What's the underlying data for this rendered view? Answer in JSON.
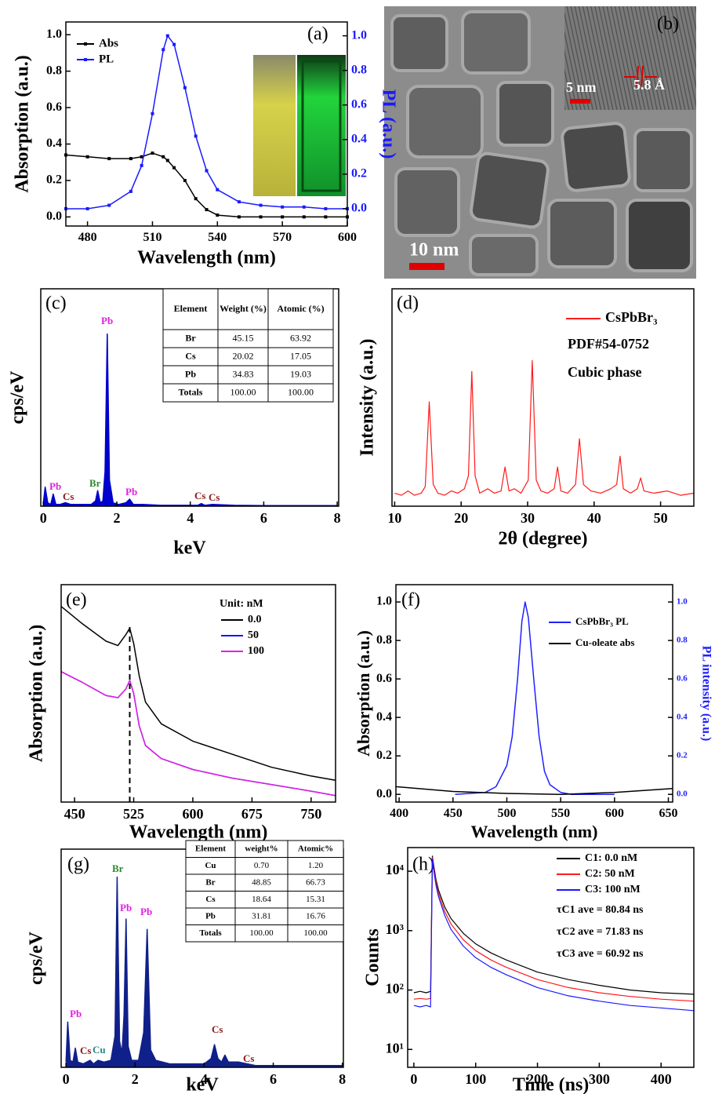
{
  "chart_data": [
    {
      "type": "line",
      "label": "(a)",
      "xlabel": "Wavelength (nm)",
      "ylabel": "Absorption (a.u.)",
      "y2label": "PL (a.u.)",
      "y2color": "#1a1aff",
      "x": [
        470,
        480,
        490,
        500,
        505,
        510,
        515,
        517,
        520,
        525,
        530,
        535,
        540,
        550,
        560,
        570,
        580,
        590,
        600
      ],
      "series": [
        {
          "name": "Abs",
          "color": "#000000",
          "values": [
            0.34,
            0.33,
            0.32,
            0.32,
            0.33,
            0.35,
            0.33,
            0.31,
            0.27,
            0.2,
            0.1,
            0.04,
            0.01,
            0.0,
            0.0,
            0.0,
            0.0,
            0.0,
            0.0
          ]
        },
        {
          "name": "PL",
          "color": "#1a1aff",
          "axis": "y2",
          "values": [
            0.0,
            0.0,
            0.02,
            0.1,
            0.25,
            0.55,
            0.92,
            1.0,
            0.95,
            0.7,
            0.42,
            0.22,
            0.11,
            0.04,
            0.02,
            0.01,
            0.01,
            0.0,
            0.0
          ]
        }
      ],
      "xlim": [
        470,
        600
      ],
      "xticks": [
        480,
        510,
        540,
        570,
        600
      ],
      "ylim": [
        -0.05,
        1.07
      ],
      "yticks": [
        {
          "value": 0,
          "label": "0.0"
        },
        0.2,
        0.4,
        0.6,
        0.8,
        {
          "value": 1,
          "label": "1.0"
        }
      ],
      "y2lim": [
        -0.1,
        1.08
      ],
      "y2ticks": [
        {
          "value": 0,
          "label": "0.0"
        },
        0.2,
        0.4,
        0.6,
        0.8,
        {
          "value": 1,
          "label": "1.0"
        }
      ],
      "markers": true,
      "legend": "upper left"
    },
    {
      "type": "image",
      "label": "(b)",
      "annotations": [
        "5 nm",
        "5.8 Å",
        "10 nm"
      ]
    },
    {
      "type": "area",
      "label": "(c)",
      "xlabel": "keV",
      "ylabel": "cps/eV",
      "color": "#0000cc",
      "x": [
        0,
        0.05,
        0.12,
        0.2,
        0.27,
        0.34,
        0.45,
        0.6,
        0.75,
        0.9,
        1.1,
        1.3,
        1.42,
        1.48,
        1.55,
        1.62,
        1.68,
        1.74,
        1.8,
        1.9,
        2.05,
        2.25,
        2.35,
        2.45,
        2.7,
        3.2,
        3.8,
        4.2,
        4.3,
        4.4,
        4.6,
        5.2,
        6,
        7,
        8
      ],
      "values": [
        2,
        11,
        2,
        1,
        7,
        1,
        1,
        2,
        1,
        1,
        1,
        1,
        3,
        9,
        2,
        3,
        20,
        99,
        15,
        2,
        1,
        2,
        4,
        1,
        1,
        0.5,
        0.5,
        0.5,
        1.5,
        0.5,
        1,
        0.5,
        0.3,
        0.3,
        0.3
      ],
      "xlim": [
        -0.07,
        8.04
      ],
      "xticks": [
        0,
        2,
        4,
        6,
        8
      ],
      "ylim": [
        0,
        125
      ],
      "peak_labels": [
        {
          "text": "Pb",
          "color": "#e020e0"
        },
        {
          "text": "Cs",
          "color": "#8b1a1a"
        },
        {
          "text": "Br",
          "color": "#2a8a2a"
        },
        {
          "text": "Pb",
          "color": "#e020e0"
        },
        {
          "text": "Pb",
          "color": "#e020e0"
        },
        {
          "text": "Cs",
          "color": "#8b1a1a"
        },
        {
          "text": "Cs",
          "color": "#8b1a1a"
        }
      ],
      "table": {
        "header": [
          "Element",
          "Weight (%)",
          "Atomic (%)"
        ],
        "rows": [
          [
            "Br",
            "45.15",
            "63.92"
          ],
          [
            "Cs",
            "20.02",
            "17.05"
          ],
          [
            "Pb",
            "34.83",
            "19.03"
          ],
          [
            "Totals",
            "100.00",
            "100.00"
          ]
        ]
      }
    },
    {
      "type": "line",
      "label": "(d)",
      "xlabel": "2θ (degree)",
      "ylabel": "Intensity (a.u.)",
      "x": [
        10,
        11,
        12,
        13,
        14,
        14.6,
        15.2,
        15.8,
        16.5,
        17.5,
        18.5,
        19.5,
        20.5,
        21.1,
        21.6,
        22.1,
        22.8,
        24,
        25,
        26,
        26.6,
        27.2,
        28,
        29,
        30.1,
        30.7,
        31.3,
        32,
        33,
        34,
        34.5,
        35,
        36,
        37.2,
        37.8,
        38.4,
        39.5,
        41,
        42.5,
        43.4,
        43.9,
        44.4,
        45.5,
        46.5,
        47,
        47.5,
        49,
        51,
        53,
        55
      ],
      "series": [
        {
          "name": "CsPbBr₃",
          "color": "#ff1a1a",
          "values": [
            6,
            5,
            7,
            5,
            6,
            9,
            48,
            10,
            6,
            5,
            7,
            6,
            8,
            14,
            62,
            14,
            6,
            8,
            6,
            7,
            18,
            7,
            8,
            6,
            12,
            67,
            12,
            7,
            6,
            8,
            18,
            7,
            6,
            10,
            31,
            10,
            7,
            6,
            8,
            10,
            23,
            8,
            6,
            8,
            13,
            7,
            6,
            7,
            5,
            6
          ]
        }
      ],
      "xlim": [
        9.6,
        55
      ],
      "xticks": [
        10,
        20,
        30,
        40,
        50
      ],
      "ylim": [
        0,
        100
      ],
      "annotations": [
        "PDF#54-0752",
        "Cubic phase"
      ],
      "legend": "upper right"
    },
    {
      "type": "line",
      "label": "(e)",
      "xlabel": "Wavelength (nm)",
      "ylabel": "Absorption (a.u.)",
      "legend_title": "Unit: nM",
      "x": [
        433,
        460,
        490,
        505,
        515,
        520,
        525,
        532,
        540,
        560,
        600,
        650,
        700,
        750,
        781
      ],
      "series": [
        {
          "name": "0.0",
          "color": "#000000",
          "values": [
            0.9,
            0.82,
            0.74,
            0.72,
            0.77,
            0.8,
            0.73,
            0.58,
            0.46,
            0.36,
            0.28,
            0.22,
            0.16,
            0.12,
            0.1
          ]
        },
        {
          "name": "50",
          "color": "#1414ff",
          "values": [
            0.6,
            0.55,
            0.49,
            0.48,
            0.52,
            0.56,
            0.5,
            0.35,
            0.26,
            0.2,
            0.15,
            0.11,
            0.08,
            0.05,
            0.03
          ]
        },
        {
          "name": "100",
          "color": "#e020e0",
          "values": [
            0.6,
            0.55,
            0.49,
            0.48,
            0.52,
            0.56,
            0.5,
            0.35,
            0.26,
            0.2,
            0.15,
            0.11,
            0.08,
            0.05,
            0.03
          ]
        }
      ],
      "xlim": [
        433,
        781
      ],
      "xticks": [
        450,
        525,
        600,
        675,
        750
      ],
      "ylim": [
        0,
        1
      ],
      "vline": 520,
      "legend": "upper right"
    },
    {
      "type": "line",
      "label": "(f)",
      "xlabel": "Wavelength (nm)",
      "ylabel": "Absorption (a.u.)",
      "y2label": "PL intensity (a.u.)",
      "y2color": "#2020ff",
      "series": [
        {
          "name": "CsPbBr₃ PL",
          "color": "#2020ff",
          "axis": "y2",
          "x": [
            452,
            480,
            490,
            500,
            505,
            510,
            514,
            517,
            520,
            525,
            530,
            535,
            540,
            550,
            560,
            600
          ],
          "values": [
            0,
            0.01,
            0.04,
            0.15,
            0.3,
            0.6,
            0.9,
            1.0,
            0.92,
            0.6,
            0.3,
            0.12,
            0.05,
            0.01,
            0.0,
            0.0
          ]
        },
        {
          "name": "Cu-oleate abs",
          "color": "#000000",
          "x": [
            397,
            450,
            500,
            550,
            600,
            654
          ],
          "values": [
            0.04,
            0.015,
            0.005,
            0.0,
            0.01,
            0.03
          ]
        }
      ],
      "xlim": [
        397,
        654
      ],
      "xticks": [
        400,
        450,
        500,
        550,
        600,
        650
      ],
      "ylim": [
        -0.04,
        1.09
      ],
      "yticks": [
        {
          "value": 0,
          "label": "0.0"
        },
        0.2,
        0.4,
        0.6,
        0.8,
        {
          "value": 1,
          "label": "1.0"
        }
      ],
      "y2lim": [
        -0.04,
        1.09
      ],
      "y2ticks": [
        {
          "value": 0,
          "label": "0.0"
        },
        0.2,
        0.4,
        0.6,
        0.8,
        {
          "value": 1,
          "label": "1.0"
        }
      ],
      "legend": "upper right"
    },
    {
      "type": "area",
      "label": "(g)",
      "xlabel": "keV",
      "ylabel": "cps/eV",
      "color": "#10208a",
      "x": [
        0,
        0.05,
        0.12,
        0.2,
        0.27,
        0.34,
        0.5,
        0.7,
        0.8,
        0.93,
        1.1,
        1.3,
        1.42,
        1.48,
        1.55,
        1.62,
        1.68,
        1.74,
        1.8,
        1.9,
        2.1,
        2.25,
        2.35,
        2.45,
        2.6,
        3.0,
        3.6,
        4.0,
        4.2,
        4.3,
        4.4,
        4.5,
        4.6,
        4.7,
        5.0,
        5.5,
        6.5,
        7.5,
        8
      ],
      "values": [
        3,
        26,
        4,
        3,
        11,
        3,
        2,
        4,
        2,
        4,
        3,
        4,
        18,
        109,
        15,
        8,
        30,
        85,
        12,
        4,
        4,
        20,
        79,
        10,
        4,
        2,
        2,
        2,
        5,
        13,
        5,
        3,
        7,
        3,
        3,
        1,
        1,
        1,
        1
      ],
      "xlim": [
        -0.14,
        8.03
      ],
      "xticks": [
        0,
        2,
        4,
        6,
        8
      ],
      "ylim": [
        0,
        125
      ],
      "peak_labels": [
        {
          "text": "Pb",
          "color": "#e020e0"
        },
        {
          "text": "Cs",
          "color": "#8b1a1a"
        },
        {
          "text": "Cu",
          "color": "#2a8a8a"
        },
        {
          "text": "Br",
          "color": "#2a8a2a"
        },
        {
          "text": "Pb",
          "color": "#e020e0"
        },
        {
          "text": "Pb",
          "color": "#e020e0"
        },
        {
          "text": "Cs",
          "color": "#8b1a1a"
        },
        {
          "text": "Cs",
          "color": "#8b1a1a"
        }
      ],
      "table": {
        "header": [
          "Element",
          "weight%",
          "Atomic%"
        ],
        "rows": [
          [
            "Cu",
            "0.70",
            "1.20"
          ],
          [
            "Br",
            "48.85",
            "66.73"
          ],
          [
            "Cs",
            "18.64",
            "15.31"
          ],
          [
            "Pb",
            "31.81",
            "16.76"
          ],
          [
            "Totals",
            "100.00",
            "100.00"
          ]
        ]
      }
    },
    {
      "type": "line",
      "label": "(h)",
      "xlabel": "Time (ns)",
      "ylabel": "Counts",
      "yscale": "log",
      "x": [
        0,
        10,
        20,
        27,
        30,
        33,
        36,
        40,
        50,
        60,
        80,
        100,
        125,
        150,
        200,
        250,
        300,
        350,
        400,
        453
      ],
      "series": [
        {
          "name": "C1: 0.0 nM",
          "color": "#000000",
          "values": [
            90,
            95,
            90,
            95,
            18000,
            11000,
            7000,
            4800,
            2500,
            1600,
            900,
            600,
            420,
            320,
            200,
            150,
            120,
            100,
            90,
            85
          ]
        },
        {
          "name": "C2: 50  nM",
          "color": "#ff1a1a",
          "values": [
            70,
            72,
            70,
            72,
            17000,
            10000,
            6300,
            4200,
            2100,
            1300,
            700,
            460,
            320,
            240,
            150,
            110,
            90,
            78,
            70,
            65
          ]
        },
        {
          "name": "C3: 100 nM",
          "color": "#1a1aff",
          "values": [
            55,
            52,
            55,
            52,
            16000,
            9000,
            5600,
            3700,
            1800,
            1050,
            550,
            350,
            240,
            180,
            110,
            80,
            65,
            55,
            50,
            45
          ]
        }
      ],
      "xlim": [
        -10,
        453
      ],
      "xticks": [
        0,
        100,
        200,
        300,
        400
      ],
      "ylim": [
        5,
        25000
      ],
      "yticks": [
        {
          "value": 10,
          "label": "10¹"
        },
        {
          "value": 100,
          "label": "10²"
        },
        {
          "value": 1000,
          "label": "10³"
        },
        {
          "value": 10000,
          "label": "10⁴"
        }
      ],
      "annotations": [
        "τC1 ave = 80.84 ns",
        "τC2 ave = 71.83 ns",
        "τC3  ave = 60.92 ns"
      ],
      "legend": "upper right"
    }
  ]
}
